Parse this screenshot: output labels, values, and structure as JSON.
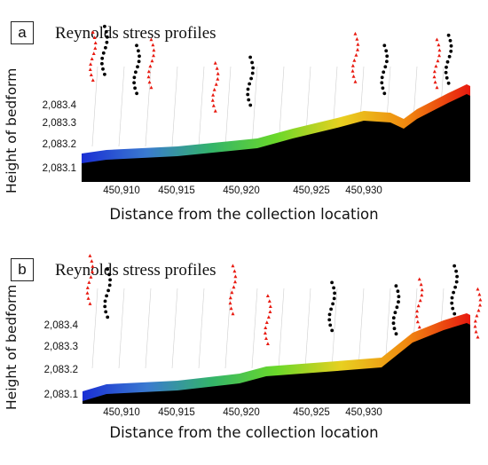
{
  "chart_data": [
    {
      "panel": "a",
      "type": "scatter",
      "title": "Reynolds stress profiles",
      "xlabel": "Distance from the collection location",
      "ylabel": "Height of bedform",
      "x_ticks": [
        "450,910",
        "450,915",
        "450,920",
        "450,925",
        "450,930"
      ],
      "y_ticks": [
        "2,083.1",
        "2,083.2",
        "2,083.3",
        "2,083.4"
      ],
      "surface_colors": [
        "#1a2fd4",
        "#3a7ad0",
        "#33b46a",
        "#6ad82a",
        "#e8d020",
        "#f08a10",
        "#e81a10"
      ],
      "series": [
        {
          "color": "#000000",
          "marker": "circle",
          "points": [
            [
              5,
              0.91
            ],
            [
              10.5,
              0.78
            ],
            [
              30,
              0.7
            ],
            [
              53,
              0.78
            ],
            [
              64,
              0.85
            ]
          ]
        },
        {
          "color": "#e81a10",
          "marker": "triangle",
          "points": [
            [
              3,
              0.87
            ],
            [
              13,
              0.82
            ],
            [
              24,
              0.66
            ],
            [
              48,
              0.86
            ],
            [
              62,
              0.82
            ]
          ]
        }
      ]
    },
    {
      "panel": "b",
      "type": "scatter",
      "title": "Reynolds stress profiles",
      "xlabel": "Distance from the collection location",
      "ylabel": "Height of bedform",
      "x_ticks": [
        "450,910",
        "450,915",
        "450,920",
        "450,925",
        "450,930"
      ],
      "y_ticks": [
        "2,083.1",
        "2,083.2",
        "2,083.3",
        "2,083.4"
      ],
      "surface_colors": [
        "#1a2fd4",
        "#3a7ad0",
        "#33b46a",
        "#6ad82a",
        "#e8d020",
        "#f08a10",
        "#e81a10"
      ],
      "series": [
        {
          "color": "#000000",
          "marker": "circle",
          "points": [
            [
              5.5,
              0.78
            ],
            [
              44,
              0.7
            ],
            [
              55,
              0.68
            ],
            [
              65,
              0.8
            ]
          ]
        },
        {
          "color": "#e81a10",
          "marker": "triangle",
          "points": [
            [
              2.5,
              0.86
            ],
            [
              27,
              0.8
            ],
            [
              33,
              0.62
            ],
            [
              59,
              0.72
            ],
            [
              69,
              0.66
            ]
          ]
        }
      ]
    }
  ]
}
